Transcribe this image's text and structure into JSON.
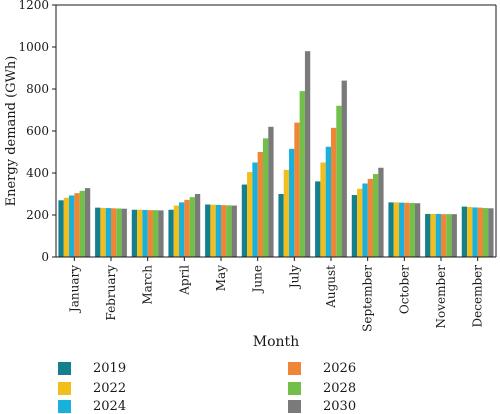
{
  "chart_data": {
    "type": "bar",
    "xlabel": "Month",
    "ylabel": "Energy demand (GWh)",
    "ylim": [
      0,
      1200
    ],
    "yticks": [
      0,
      200,
      400,
      600,
      800,
      1000,
      1200
    ],
    "grid": false,
    "legend_position": "bottom",
    "categories": [
      "January",
      "February",
      "March",
      "April",
      "May",
      "June",
      "July",
      "August",
      "September",
      "October",
      "November",
      "December"
    ],
    "series": [
      {
        "name": "2019",
        "color": "#15808d",
        "values": [
          270,
          235,
          225,
          225,
          250,
          345,
          300,
          360,
          295,
          260,
          205,
          240
        ]
      },
      {
        "name": "2022",
        "color": "#f2be1b",
        "values": [
          282,
          234,
          225,
          245,
          249,
          405,
          415,
          450,
          325,
          260,
          205,
          238
        ]
      },
      {
        "name": "2024",
        "color": "#1ab0dc",
        "values": [
          293,
          233,
          224,
          260,
          248,
          450,
          515,
          525,
          350,
          259,
          205,
          236
        ]
      },
      {
        "name": "2026",
        "color": "#ef8536",
        "values": [
          304,
          232,
          223,
          272,
          247,
          500,
          640,
          615,
          372,
          258,
          204,
          235
        ]
      },
      {
        "name": "2028",
        "color": "#72c04a",
        "values": [
          315,
          231,
          223,
          285,
          246,
          565,
          790,
          720,
          395,
          257,
          204,
          233
        ]
      },
      {
        "name": "2030",
        "color": "#7a7a7a",
        "values": [
          328,
          230,
          222,
          300,
          245,
          620,
          980,
          840,
          425,
          256,
          204,
          232
        ]
      }
    ]
  }
}
